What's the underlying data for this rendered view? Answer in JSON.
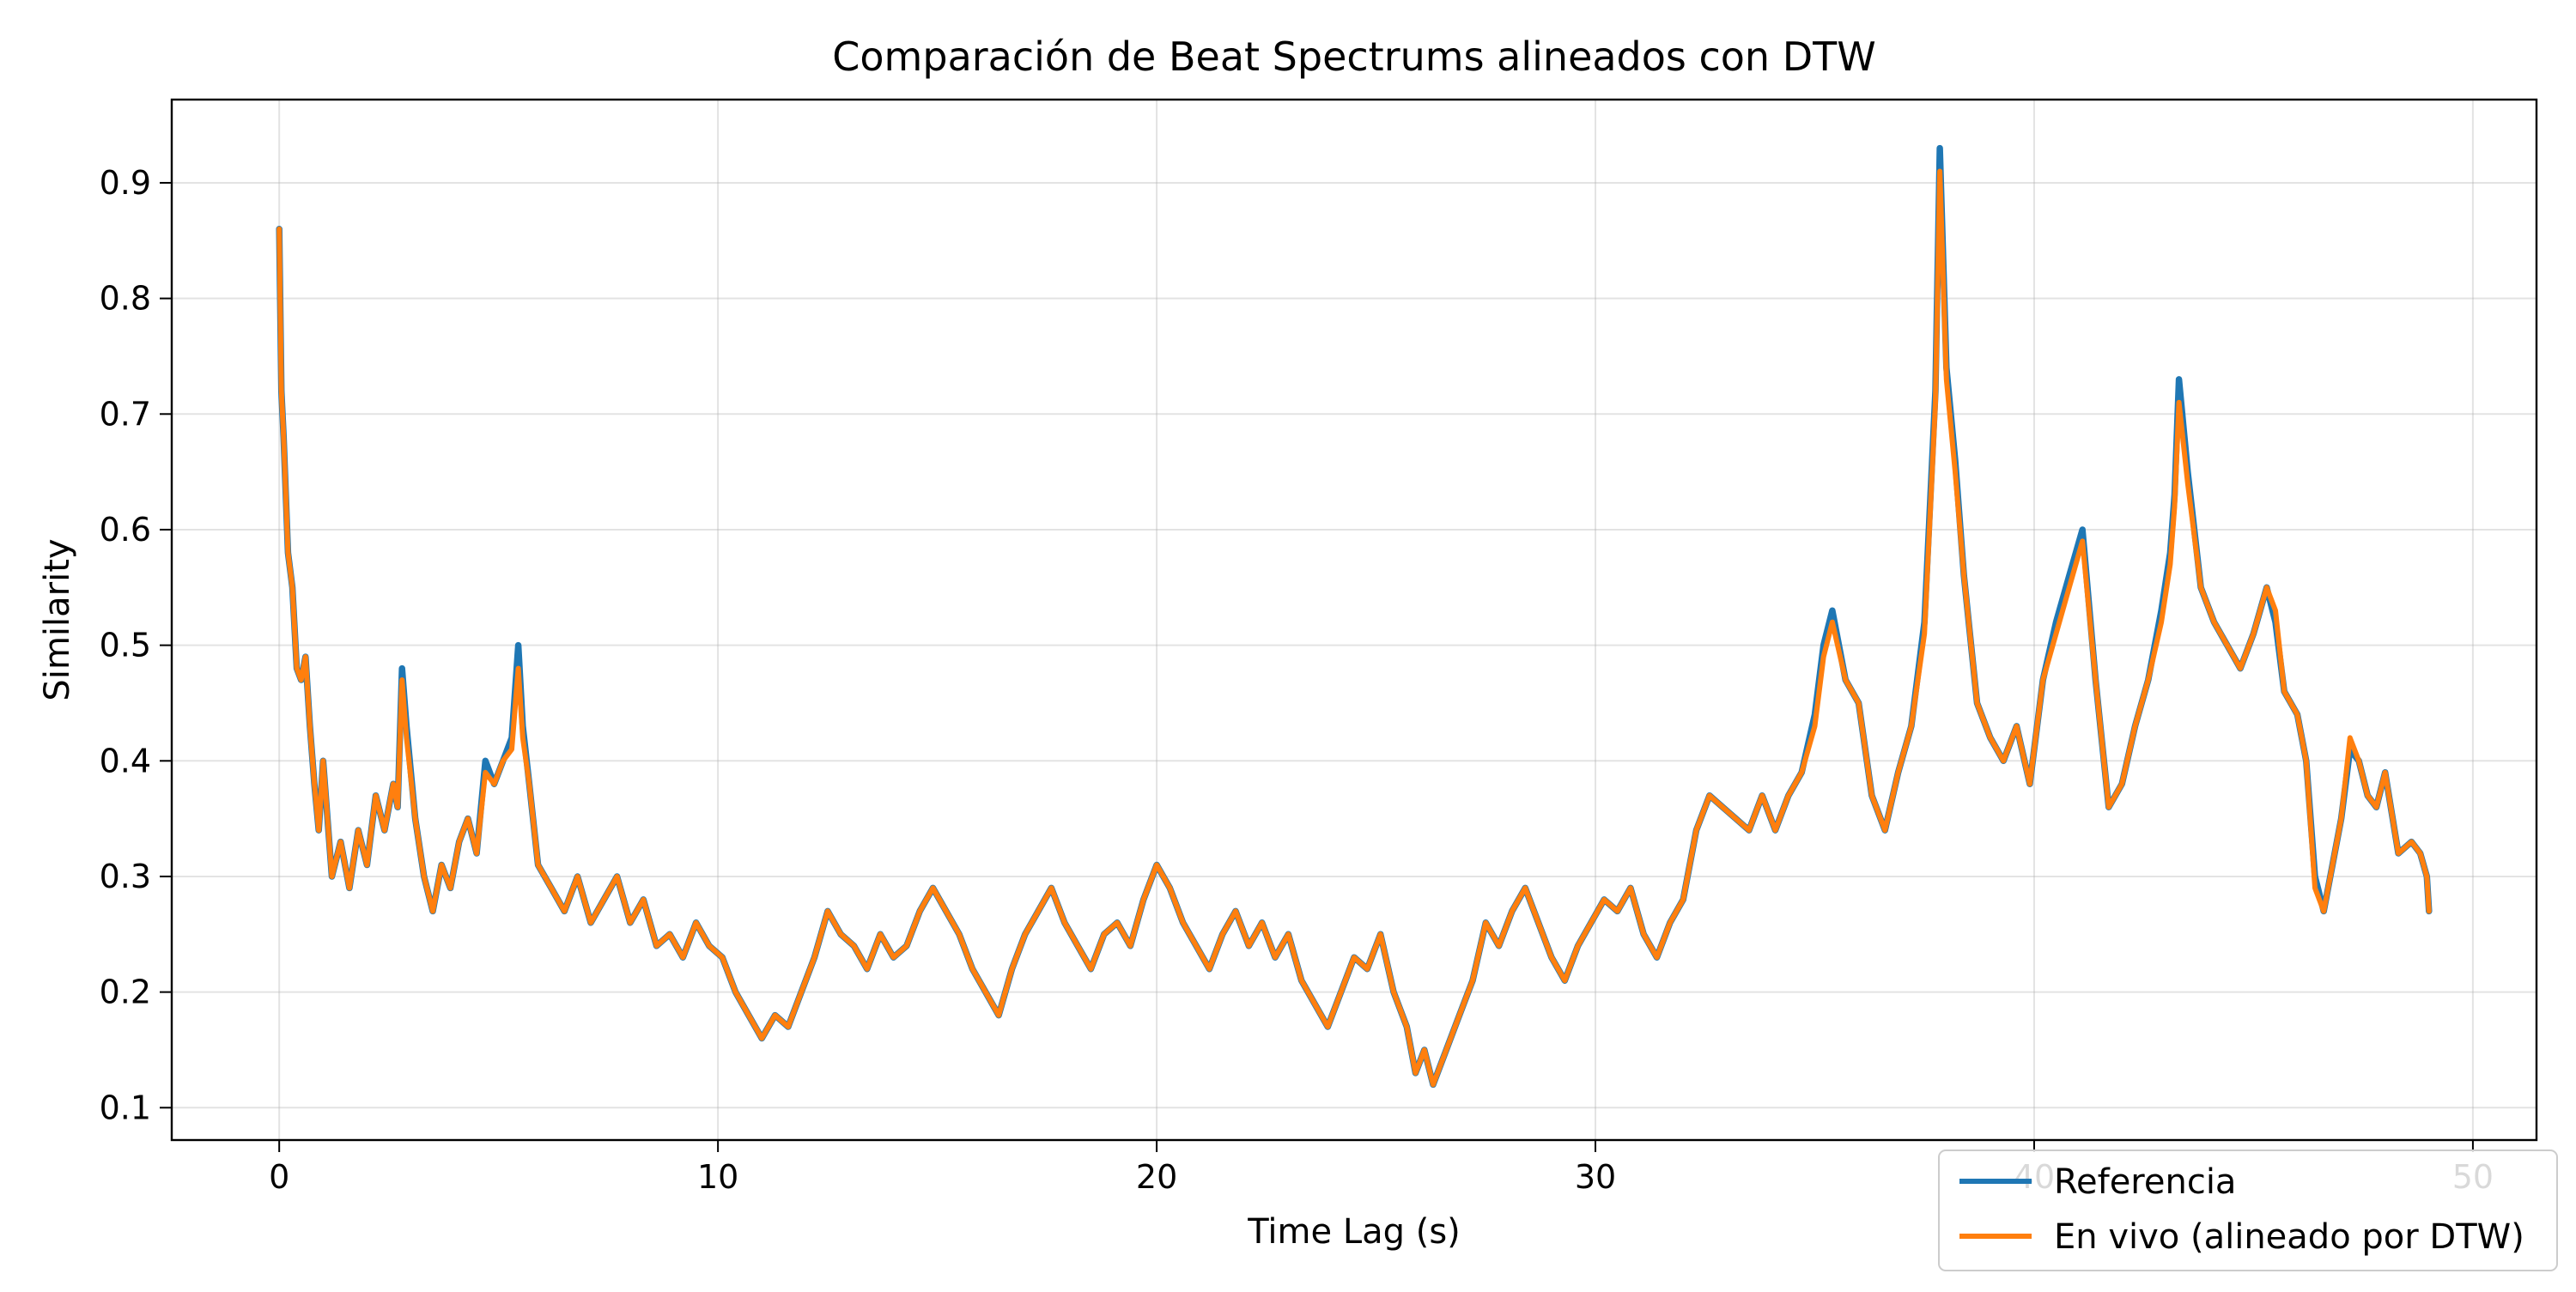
{
  "chart_data": {
    "type": "line",
    "title": "Comparación de Beat Spectrums alineados con DTW",
    "xlabel": "Time Lag (s)",
    "ylabel": "Similarity",
    "xlim": [
      -2.45,
      51.45
    ],
    "ylim": [
      0.072,
      0.972
    ],
    "xticks": [
      0,
      10,
      20,
      30,
      40,
      50
    ],
    "yticks": [
      0.1,
      0.2,
      0.3,
      0.4,
      0.5,
      0.6,
      0.7,
      0.8,
      0.9
    ],
    "grid": true,
    "legend_position": "bottom-right",
    "colors": {
      "referencia": "#1f77b4",
      "en_vivo": "#ff7f0e"
    },
    "x": [
      0,
      0.05,
      0.1,
      0.2,
      0.3,
      0.4,
      0.5,
      0.6,
      0.7,
      0.8,
      0.9,
      1,
      1.2,
      1.4,
      1.6,
      1.8,
      2,
      2.2,
      2.4,
      2.6,
      2.7,
      2.8,
      2.9,
      3.1,
      3.3,
      3.5,
      3.7,
      3.9,
      4.1,
      4.3,
      4.5,
      4.7,
      4.9,
      5.1,
      5.3,
      5.45,
      5.55,
      5.7,
      5.9,
      6.2,
      6.5,
      6.8,
      7.1,
      7.4,
      7.7,
      8,
      8.3,
      8.6,
      8.9,
      9.2,
      9.5,
      9.8,
      10.1,
      10.4,
      10.7,
      11,
      11.3,
      11.6,
      11.9,
      12.2,
      12.5,
      12.8,
      13.1,
      13.4,
      13.7,
      14,
      14.3,
      14.6,
      14.9,
      15.2,
      15.5,
      15.8,
      16.1,
      16.4,
      16.7,
      17,
      17.3,
      17.6,
      17.9,
      18.2,
      18.5,
      18.8,
      19.1,
      19.4,
      19.7,
      20,
      20.3,
      20.6,
      20.9,
      21.2,
      21.5,
      21.8,
      22.1,
      22.4,
      22.7,
      23,
      23.3,
      23.6,
      23.9,
      24.2,
      24.5,
      24.8,
      25.1,
      25.4,
      25.7,
      25.9,
      26.1,
      26.3,
      26.6,
      26.9,
      27.2,
      27.5,
      27.8,
      28.1,
      28.4,
      28.7,
      29,
      29.3,
      29.6,
      29.9,
      30.2,
      30.5,
      30.8,
      31.1,
      31.4,
      31.7,
      32,
      32.3,
      32.6,
      32.9,
      33.2,
      33.5,
      33.8,
      34.1,
      34.4,
      34.7,
      35,
      35.2,
      35.4,
      35.7,
      36,
      36.3,
      36.6,
      36.9,
      37.2,
      37.5,
      37.65,
      37.75,
      37.85,
      38,
      38.2,
      38.4,
      38.7,
      39,
      39.3,
      39.6,
      39.9,
      40.2,
      40.5,
      40.8,
      41.1,
      41.4,
      41.7,
      42,
      42.3,
      42.6,
      42.9,
      43.1,
      43.2,
      43.3,
      43.5,
      43.8,
      44.1,
      44.4,
      44.7,
      45,
      45.3,
      45.5,
      45.7,
      46,
      46.2,
      46.4,
      46.6,
      46.8,
      47,
      47.2,
      47.4,
      47.6,
      47.8,
      48,
      48.3,
      48.6,
      48.8,
      48.95,
      49
    ],
    "series": [
      {
        "name": "Referencia",
        "values": [
          0.86,
          0.72,
          0.68,
          0.58,
          0.55,
          0.48,
          0.47,
          0.49,
          0.43,
          0.38,
          0.34,
          0.4,
          0.3,
          0.33,
          0.29,
          0.34,
          0.31,
          0.37,
          0.34,
          0.38,
          0.36,
          0.48,
          0.43,
          0.35,
          0.3,
          0.27,
          0.31,
          0.29,
          0.33,
          0.35,
          0.32,
          0.4,
          0.38,
          0.4,
          0.42,
          0.5,
          0.43,
          0.38,
          0.31,
          0.29,
          0.27,
          0.3,
          0.26,
          0.28,
          0.3,
          0.26,
          0.28,
          0.24,
          0.25,
          0.23,
          0.26,
          0.24,
          0.23,
          0.2,
          0.18,
          0.16,
          0.18,
          0.17,
          0.2,
          0.23,
          0.27,
          0.25,
          0.24,
          0.22,
          0.25,
          0.23,
          0.24,
          0.27,
          0.29,
          0.27,
          0.25,
          0.22,
          0.2,
          0.18,
          0.22,
          0.25,
          0.27,
          0.29,
          0.26,
          0.24,
          0.22,
          0.25,
          0.26,
          0.24,
          0.28,
          0.31,
          0.29,
          0.26,
          0.24,
          0.22,
          0.25,
          0.27,
          0.24,
          0.26,
          0.23,
          0.25,
          0.21,
          0.19,
          0.17,
          0.2,
          0.23,
          0.22,
          0.25,
          0.2,
          0.17,
          0.13,
          0.15,
          0.12,
          0.15,
          0.18,
          0.21,
          0.26,
          0.24,
          0.27,
          0.29,
          0.26,
          0.23,
          0.21,
          0.24,
          0.26,
          0.28,
          0.27,
          0.29,
          0.25,
          0.23,
          0.26,
          0.28,
          0.34,
          0.37,
          0.36,
          0.35,
          0.34,
          0.37,
          0.34,
          0.37,
          0.39,
          0.44,
          0.5,
          0.53,
          0.47,
          0.45,
          0.37,
          0.34,
          0.39,
          0.43,
          0.52,
          0.64,
          0.72,
          0.93,
          0.74,
          0.66,
          0.56,
          0.45,
          0.42,
          0.4,
          0.43,
          0.38,
          0.47,
          0.52,
          0.56,
          0.6,
          0.47,
          0.36,
          0.38,
          0.43,
          0.47,
          0.53,
          0.58,
          0.63,
          0.73,
          0.65,
          0.55,
          0.52,
          0.5,
          0.48,
          0.51,
          0.55,
          0.52,
          0.46,
          0.44,
          0.4,
          0.3,
          0.27,
          0.31,
          0.35,
          0.41,
          0.4,
          0.37,
          0.36,
          0.39,
          0.32,
          0.33,
          0.32,
          0.3,
          0.27
        ]
      },
      {
        "name": "En vivo (alineado por DTW)",
        "values": [
          0.86,
          0.72,
          0.68,
          0.58,
          0.55,
          0.48,
          0.47,
          0.49,
          0.43,
          0.38,
          0.34,
          0.4,
          0.3,
          0.33,
          0.29,
          0.34,
          0.31,
          0.37,
          0.34,
          0.38,
          0.36,
          0.47,
          0.42,
          0.35,
          0.3,
          0.27,
          0.31,
          0.29,
          0.33,
          0.35,
          0.32,
          0.39,
          0.38,
          0.4,
          0.41,
          0.48,
          0.42,
          0.38,
          0.31,
          0.29,
          0.27,
          0.3,
          0.26,
          0.28,
          0.3,
          0.26,
          0.28,
          0.24,
          0.25,
          0.23,
          0.26,
          0.24,
          0.23,
          0.2,
          0.18,
          0.16,
          0.18,
          0.17,
          0.2,
          0.23,
          0.27,
          0.25,
          0.24,
          0.22,
          0.25,
          0.23,
          0.24,
          0.27,
          0.29,
          0.27,
          0.25,
          0.22,
          0.2,
          0.18,
          0.22,
          0.25,
          0.27,
          0.29,
          0.26,
          0.24,
          0.22,
          0.25,
          0.26,
          0.24,
          0.28,
          0.31,
          0.29,
          0.26,
          0.24,
          0.22,
          0.25,
          0.27,
          0.24,
          0.26,
          0.23,
          0.25,
          0.21,
          0.19,
          0.17,
          0.2,
          0.23,
          0.22,
          0.25,
          0.2,
          0.17,
          0.13,
          0.15,
          0.12,
          0.15,
          0.18,
          0.21,
          0.26,
          0.24,
          0.27,
          0.29,
          0.26,
          0.23,
          0.21,
          0.24,
          0.26,
          0.28,
          0.27,
          0.29,
          0.25,
          0.23,
          0.26,
          0.28,
          0.34,
          0.37,
          0.36,
          0.35,
          0.34,
          0.37,
          0.34,
          0.37,
          0.39,
          0.43,
          0.49,
          0.52,
          0.47,
          0.45,
          0.37,
          0.34,
          0.39,
          0.43,
          0.51,
          0.63,
          0.71,
          0.91,
          0.73,
          0.65,
          0.56,
          0.45,
          0.42,
          0.4,
          0.43,
          0.38,
          0.47,
          0.51,
          0.55,
          0.59,
          0.47,
          0.36,
          0.38,
          0.43,
          0.47,
          0.52,
          0.57,
          0.62,
          0.71,
          0.64,
          0.55,
          0.52,
          0.5,
          0.48,
          0.51,
          0.55,
          0.53,
          0.46,
          0.44,
          0.4,
          0.29,
          0.27,
          0.31,
          0.35,
          0.42,
          0.4,
          0.37,
          0.36,
          0.39,
          0.32,
          0.33,
          0.32,
          0.3,
          0.27
        ]
      }
    ]
  }
}
